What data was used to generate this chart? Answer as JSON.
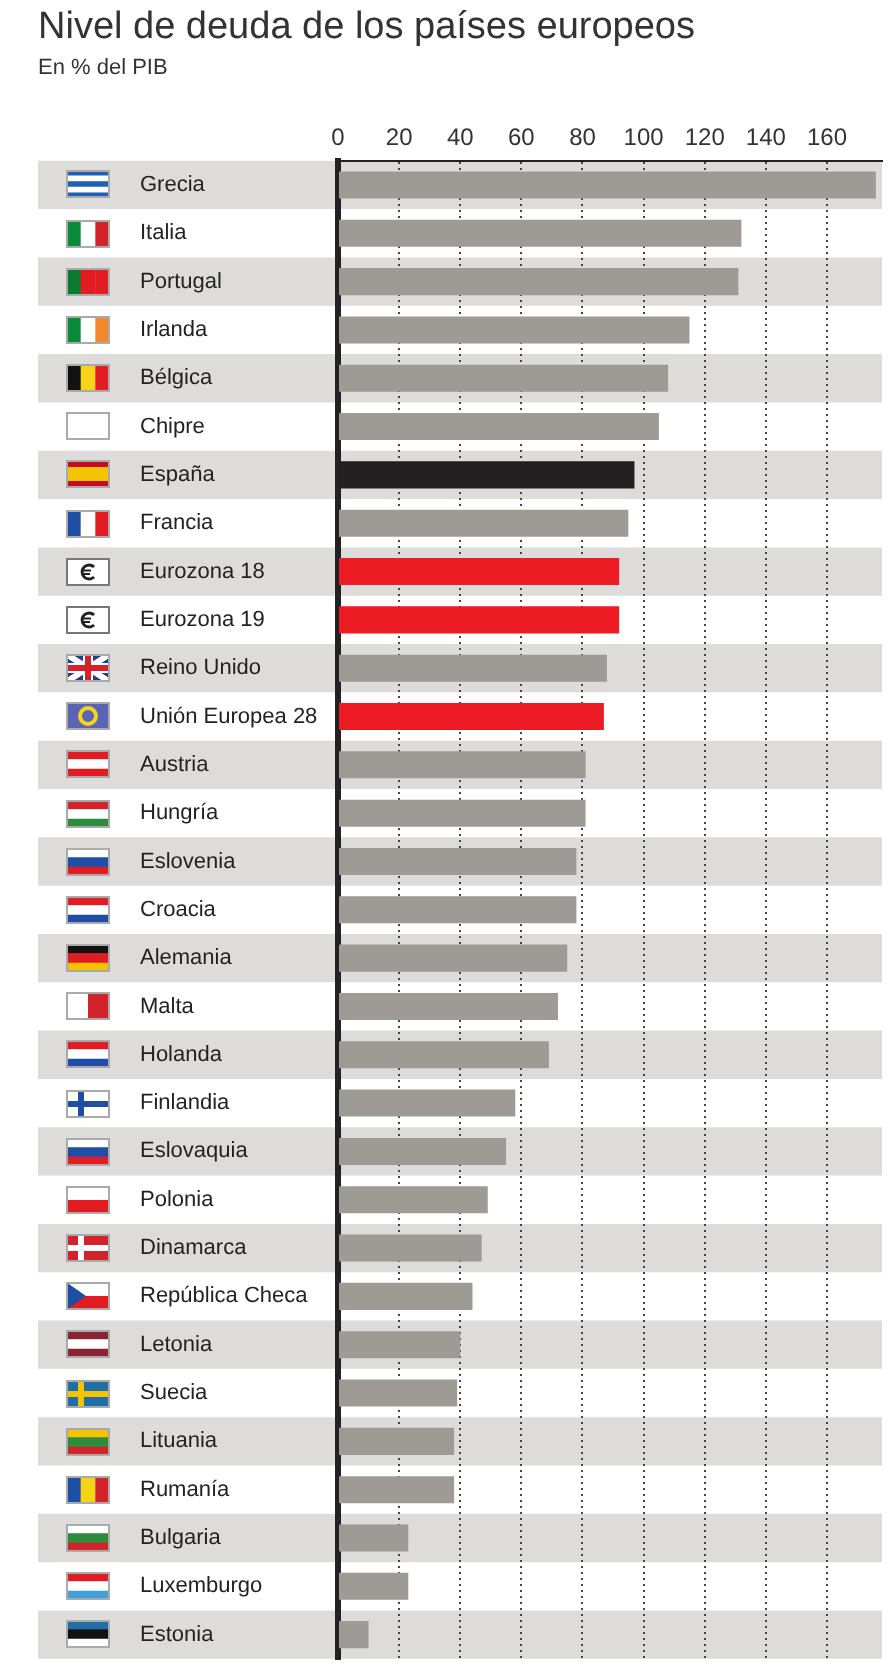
{
  "chart_data": {
    "type": "bar",
    "orientation": "horizontal",
    "title": "Nivel de deuda de los países europeos",
    "subtitle": "En % del PIB",
    "categories": [
      "Grecia",
      "Italia",
      "Portugal",
      "Irlanda",
      "Bélgica",
      "Chipre",
      "España",
      "Francia",
      "Eurozona 18",
      "Eurozona 19",
      "Reino Unido",
      "Unión Europea 28",
      "Austria",
      "Hungría",
      "Eslovenia",
      "Croacia",
      "Alemania",
      "Malta",
      "Holanda",
      "Finlandia",
      "Eslovaquia",
      "Polonia",
      "Dinamarca",
      "República Checa",
      "Letonia",
      "Suecia",
      "Lituania",
      "Rumanía",
      "Bulgaria",
      "Luxemburgo",
      "Estonia"
    ],
    "values": [
      176,
      132,
      131,
      115,
      108,
      105,
      97,
      95,
      92,
      92,
      88,
      87,
      81,
      81,
      78,
      78,
      75,
      72,
      69,
      58,
      55,
      49,
      47,
      44,
      40,
      39,
      38,
      38,
      23,
      23,
      10
    ],
    "colors": [
      "#9e9a96",
      "#9e9a96",
      "#9e9a96",
      "#9e9a96",
      "#9e9a96",
      "#9e9a96",
      "#231f20",
      "#9e9a96",
      "#ed1c24",
      "#ed1c24",
      "#9e9a96",
      "#ed1c24",
      "#9e9a96",
      "#9e9a96",
      "#9e9a96",
      "#9e9a96",
      "#9e9a96",
      "#9e9a96",
      "#9e9a96",
      "#9e9a96",
      "#9e9a96",
      "#9e9a96",
      "#9e9a96",
      "#9e9a96",
      "#9e9a96",
      "#9e9a96",
      "#9e9a96",
      "#9e9a96",
      "#9e9a96",
      "#9e9a96",
      "#9e9a96"
    ],
    "xlim": [
      0,
      178
    ],
    "xticks": [
      0,
      20,
      40,
      60,
      80,
      100,
      120,
      140,
      160
    ],
    "grid": "x"
  }
}
